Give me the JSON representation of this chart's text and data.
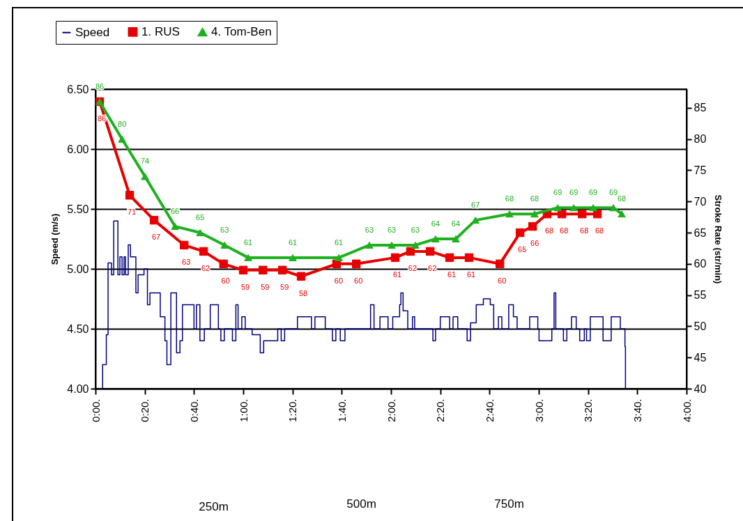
{
  "chart_data": {
    "type": "line",
    "ylabel": "Speed (m/s)",
    "y2label": "Stroke Rate (str/min)",
    "xlim": [
      0,
      240
    ],
    "xticks": [
      {
        "value": 0,
        "label": "0:00."
      },
      {
        "value": 20,
        "label": "0:20."
      },
      {
        "value": 40,
        "label": "0:40."
      },
      {
        "value": 60,
        "label": "1:00."
      },
      {
        "value": 80,
        "label": "1:20."
      },
      {
        "value": 100,
        "label": "1:40."
      },
      {
        "value": 120,
        "label": "2:00."
      },
      {
        "value": 140,
        "label": "2:20."
      },
      {
        "value": 160,
        "label": "2:40."
      },
      {
        "value": 180,
        "label": "3:00."
      },
      {
        "value": 200,
        "label": "3:20."
      },
      {
        "value": 220,
        "label": "3:40."
      },
      {
        "value": 240,
        "label": "4:00."
      }
    ],
    "ylim": [
      4,
      6.5
    ],
    "yticks": [
      {
        "value": 4,
        "label": "4.00"
      },
      {
        "value": 4.5,
        "label": "4.50"
      },
      {
        "value": 5,
        "label": "5.00"
      },
      {
        "value": 5.5,
        "label": "5.50"
      },
      {
        "value": 6,
        "label": "6.00"
      },
      {
        "value": 6.5,
        "label": "6.50"
      }
    ],
    "y2lim": [
      40,
      88
    ],
    "y2ticks": [
      40,
      45,
      50,
      55,
      60,
      65,
      70,
      75,
      80,
      85
    ],
    "grid": "y",
    "legend": "top left",
    "annotations": [
      "250m",
      "500m",
      "750m"
    ],
    "series": [
      {
        "name": "Speed",
        "type": "step",
        "color": "#000080",
        "marker": "none",
        "x": [
          2.7,
          2.9,
          4.2,
          4.4,
          5.1,
          6.5,
          7.4,
          8.5,
          9.1,
          9.9,
          10.8,
          11.6,
          12.2,
          13.3,
          14.2,
          16.4,
          17.3,
          19.7,
          21.1,
          22.1,
          24.9,
          26.3,
          28.2,
          29.0,
          30.6,
          32.0,
          32.9,
          34.3,
          35.3,
          39.1,
          40.0,
          41.0,
          42.4,
          44.2,
          46.6,
          48.0,
          49.9,
          50.9,
          52.3,
          55.6,
          57.0,
          57.9,
          59.4,
          60.8,
          63.6,
          66.9,
          68.3,
          73.0,
          74.0,
          75.4,
          76.8,
          81.0,
          82.0,
          85.8,
          87.7,
          89.1,
          91.9,
          93.3,
          96.2,
          97.6,
          99.4,
          101.3,
          109.8,
          111.7,
          113.1,
          115.5,
          118.8,
          120.7,
          123.5,
          124.0,
          124.9,
          126.8,
          128.7,
          129.6,
          135.3,
          137.0,
          138.1,
          140.0,
          142.4,
          143.8,
          145.2,
          147.1,
          149.0,
          150.9,
          152.3,
          154.6,
          157.5,
          160.3,
          161.7,
          163.6,
          165.0,
          167.8,
          169.7,
          171.2,
          175.4,
          176.3,
          178.7,
          179.6,
          180.1,
          184.3,
          185.3,
          186.2,
          186.9,
          189.6,
          190.0,
          191.4,
          193.3,
          195.2,
          196.6,
          198.5,
          199.4,
          200.9,
          205.1,
          206.1,
          207.5,
          209.4,
          211.7,
          213.1,
          214.5,
          215.0,
          215.2
        ],
        "values": [
          4.0,
          4.2,
          4.2,
          4.45,
          5.05,
          4.95,
          5.4,
          5.4,
          4.95,
          5.1,
          4.95,
          5.1,
          4.95,
          5.2,
          5.1,
          4.8,
          4.95,
          5.0,
          4.7,
          4.8,
          4.8,
          4.6,
          4.4,
          4.2,
          4.8,
          4.8,
          4.3,
          4.4,
          4.7,
          4.7,
          4.5,
          4.7,
          4.4,
          4.5,
          4.7,
          4.7,
          4.5,
          4.4,
          4.5,
          4.4,
          4.7,
          4.5,
          4.6,
          4.5,
          4.45,
          4.3,
          4.4,
          4.4,
          4.5,
          4.4,
          4.5,
          4.5,
          4.6,
          4.6,
          4.5,
          4.6,
          4.6,
          4.5,
          4.4,
          4.5,
          4.4,
          4.5,
          4.5,
          4.7,
          4.5,
          4.6,
          4.5,
          4.6,
          4.7,
          4.8,
          4.65,
          4.5,
          4.6,
          4.5,
          4.5,
          4.4,
          4.5,
          4.6,
          4.6,
          4.5,
          4.6,
          4.5,
          4.5,
          4.4,
          4.55,
          4.7,
          4.75,
          4.7,
          4.5,
          4.6,
          4.5,
          4.7,
          4.6,
          4.5,
          4.5,
          4.6,
          4.6,
          4.5,
          4.4,
          4.4,
          4.5,
          4.8,
          4.5,
          4.5,
          4.4,
          4.5,
          4.6,
          4.5,
          4.4,
          4.5,
          4.4,
          4.6,
          4.6,
          4.4,
          4.4,
          4.6,
          4.6,
          4.5,
          4.5,
          4.35,
          4.0
        ]
      },
      {
        "name": "1. RUS",
        "axis": "y2",
        "color": "#e60000",
        "marker": "square",
        "data_labels": true,
        "x": [
          1.7,
          13.9,
          23.8,
          36.0,
          43.9,
          52.0,
          60.0,
          68.0,
          75.9,
          83.5,
          97.9,
          105.9,
          121.7,
          127.9,
          135.9,
          143.8,
          151.7,
          164.2,
          172.4,
          177.5,
          183.4,
          189.4,
          197.6,
          203.8
        ],
        "values": [
          86,
          71,
          67,
          63,
          62,
          60,
          59,
          59,
          59,
          58,
          60,
          60,
          61,
          62,
          62,
          61,
          61,
          60,
          65,
          66,
          68,
          68,
          68,
          68
        ]
      },
      {
        "name": "4. Tom-Ben",
        "axis": "y2",
        "color": "#1fb01f",
        "marker": "triangle",
        "data_labels": true,
        "x": [
          1.7,
          10.8,
          20.1,
          32.3,
          42.5,
          52.4,
          62.0,
          80.1,
          98.8,
          111.2,
          120.3,
          129.9,
          138.1,
          146.3,
          154.3,
          168.1,
          178.3,
          187.7,
          194.2,
          202.1,
          210.3,
          213.7
        ],
        "values": [
          86,
          80,
          74,
          66,
          65,
          63,
          61,
          61,
          61,
          63,
          63,
          63,
          64,
          64,
          67,
          68,
          68,
          69,
          69,
          69,
          69,
          68
        ]
      }
    ]
  }
}
